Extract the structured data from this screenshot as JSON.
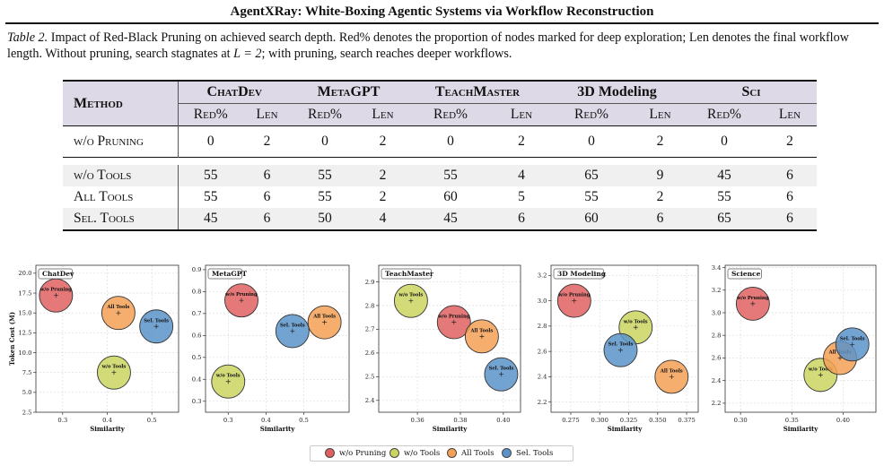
{
  "header": {
    "title": "AgentXRay: White-Boxing Agentic Systems via Workflow Reconstruction"
  },
  "caption": {
    "label": "Table 2.",
    "text1": " Impact of Red-Black Pruning on achieved search depth. Red% denotes the proportion of nodes marked for deep exploration; Len denotes the final workflow length. Without pruning, search stagnates at ",
    "math1": "L = 2",
    "text2": "; with pruning, search reaches deeper workflows."
  },
  "table": {
    "method_header": "Method",
    "groups": [
      "ChatDev",
      "MetaGPT",
      "TeachMaster",
      "3D Modeling",
      "Sci"
    ],
    "subheaders": [
      "Red%",
      "Len"
    ],
    "rows": [
      {
        "method": "w/o Pruning",
        "values": [
          "0",
          "2",
          "0",
          "2",
          "0",
          "2",
          "0",
          "2",
          "0",
          "2"
        ],
        "bold": []
      },
      {
        "method": "w/o Tools",
        "values": [
          "55",
          "6",
          "55",
          "2",
          "55",
          "4",
          "65",
          "9",
          "45",
          "6"
        ],
        "bold": []
      },
      {
        "method": "All Tools",
        "values": [
          "55",
          "6",
          "55",
          "2",
          "60",
          "5",
          "55",
          "2",
          "55",
          "6"
        ],
        "bold": []
      },
      {
        "method": "Sel. Tools",
        "values": [
          "45",
          "6",
          "50",
          "4",
          "45",
          "6",
          "60",
          "6",
          "65",
          "6"
        ],
        "bold": [
          1,
          5,
          7,
          9
        ]
      }
    ]
  },
  "legend": {
    "items": [
      {
        "label": "w/o Pruning",
        "color": "#e06060"
      },
      {
        "label": "w/o Tools",
        "color": "#cad560"
      },
      {
        "label": "All Tools",
        "color": "#f5a055"
      },
      {
        "label": "Sel. Tools",
        "color": "#5b93c9"
      }
    ]
  },
  "colors": {
    "w/o Pruning": "#e06060",
    "w/o Tools": "#cad560",
    "All Tools": "#f5a055",
    "Sel. Tools": "#5b93c9"
  },
  "chart_data": [
    {
      "type": "scatter",
      "title": "ChatDev",
      "xlabel": "Similarity",
      "ylabel": "Token Cost (M)",
      "xlim": [
        0.24,
        0.56
      ],
      "ylim": [
        2.5,
        21
      ],
      "xticks": [
        "0.3",
        "0.4",
        "0.5"
      ],
      "xtick_values": [
        0.3,
        0.4,
        0.5
      ],
      "yticks": [
        "2.5",
        "5.0",
        "7.5",
        "10.0",
        "12.5",
        "15.0",
        "17.5",
        "20.0"
      ],
      "ytick_values": [
        2.5,
        5.0,
        7.5,
        10.0,
        12.5,
        15.0,
        17.5,
        20.0
      ],
      "grid": true,
      "points": [
        {
          "series": "w/o Pruning",
          "label": "w/o Pruning",
          "x": 0.285,
          "y": 17.2
        },
        {
          "series": "w/o Tools",
          "label": "w/o Tools",
          "x": 0.415,
          "y": 7.5
        },
        {
          "series": "All Tools",
          "label": "All Tools",
          "x": 0.425,
          "y": 15.0
        },
        {
          "series": "Sel. Tools",
          "label": "Sel. Tools",
          "x": 0.51,
          "y": 13.3
        }
      ]
    },
    {
      "type": "scatter",
      "title": "MetaGPT",
      "xlabel": "Similarity",
      "ylabel": "",
      "xlim": [
        0.24,
        0.62
      ],
      "ylim": [
        0.25,
        0.92
      ],
      "xticks": [
        "0.3",
        "0.4",
        "0.5"
      ],
      "xtick_values": [
        0.3,
        0.4,
        0.5
      ],
      "yticks": [
        "0.3",
        "0.4",
        "0.5",
        "0.6",
        "0.7",
        "0.8",
        "0.9"
      ],
      "ytick_values": [
        0.3,
        0.4,
        0.5,
        0.6,
        0.7,
        0.8,
        0.9
      ],
      "grid": true,
      "points": [
        {
          "series": "w/o Pruning",
          "label": "w/o Pruning",
          "x": 0.335,
          "y": 0.76
        },
        {
          "series": "w/o Tools",
          "label": "w/o Tools",
          "x": 0.3,
          "y": 0.39
        },
        {
          "series": "All Tools",
          "label": "All Tools",
          "x": 0.555,
          "y": 0.66
        },
        {
          "series": "Sel. Tools",
          "label": "Sel. Tools",
          "x": 0.47,
          "y": 0.62
        }
      ]
    },
    {
      "type": "scatter",
      "title": "TeachMaster",
      "xlabel": "Similarity",
      "ylabel": "",
      "xlim": [
        0.342,
        0.408
      ],
      "ylim": [
        2.35,
        2.97
      ],
      "xticks": [
        "0.36",
        "0.38",
        "0.40"
      ],
      "xtick_values": [
        0.36,
        0.38,
        0.4
      ],
      "yticks": [
        "2.4",
        "2.5",
        "2.6",
        "2.7",
        "2.8",
        "2.9"
      ],
      "ytick_values": [
        2.4,
        2.5,
        2.6,
        2.7,
        2.8,
        2.9
      ],
      "grid": true,
      "points": [
        {
          "series": "w/o Pruning",
          "label": "w/o Pruning",
          "x": 0.377,
          "y": 2.73
        },
        {
          "series": "w/o Tools",
          "label": "w/o Tools",
          "x": 0.357,
          "y": 2.82
        },
        {
          "series": "All Tools",
          "label": "All Tools",
          "x": 0.39,
          "y": 2.67
        },
        {
          "series": "Sel. Tools",
          "label": "Sel. Tools",
          "x": 0.399,
          "y": 2.51
        }
      ]
    },
    {
      "type": "scatter",
      "title": "3D Modeling",
      "xlabel": "Similarity",
      "ylabel": "",
      "xlim": [
        0.258,
        0.385
      ],
      "ylim": [
        2.12,
        3.28
      ],
      "xticks": [
        "0.275",
        "0.300",
        "0.325",
        "0.350",
        "0.375"
      ],
      "xtick_values": [
        0.275,
        0.3,
        0.325,
        0.35,
        0.375
      ],
      "yticks": [
        "2.2",
        "2.4",
        "2.6",
        "2.8",
        "3.0",
        "3.2"
      ],
      "ytick_values": [
        2.2,
        2.4,
        2.6,
        2.8,
        3.0,
        3.2
      ],
      "grid": true,
      "points": [
        {
          "series": "w/o Pruning",
          "label": "w/o Pruning",
          "x": 0.278,
          "y": 3.0
        },
        {
          "series": "w/o Tools",
          "label": "w/o Tools",
          "x": 0.331,
          "y": 2.79
        },
        {
          "series": "All Tools",
          "label": "All Tools",
          "x": 0.362,
          "y": 2.4
        },
        {
          "series": "Sel. Tools",
          "label": "Sel. Tools",
          "x": 0.318,
          "y": 2.61
        }
      ]
    },
    {
      "type": "scatter",
      "title": "Science",
      "xlabel": "Similarity",
      "ylabel": "",
      "xlim": [
        0.285,
        0.432
      ],
      "ylim": [
        2.12,
        3.42
      ],
      "xticks": [
        "0.30",
        "0.35",
        "0.40"
      ],
      "xtick_values": [
        0.3,
        0.35,
        0.4
      ],
      "yticks": [
        "2.2",
        "2.4",
        "2.6",
        "2.8",
        "3.0",
        "3.2",
        "3.4"
      ],
      "ytick_values": [
        2.2,
        2.4,
        2.6,
        2.8,
        3.0,
        3.2,
        3.4
      ],
      "grid": true,
      "points": [
        {
          "series": "w/o Pruning",
          "label": "w/o Pruning",
          "x": 0.312,
          "y": 3.08
        },
        {
          "series": "w/o Tools",
          "label": "w/o Tools",
          "x": 0.378,
          "y": 2.45
        },
        {
          "series": "All Tools",
          "label": "All Tools",
          "x": 0.397,
          "y": 2.6
        },
        {
          "series": "Sel. Tools",
          "label": "Sel. Tools",
          "x": 0.409,
          "y": 2.72
        }
      ]
    }
  ]
}
